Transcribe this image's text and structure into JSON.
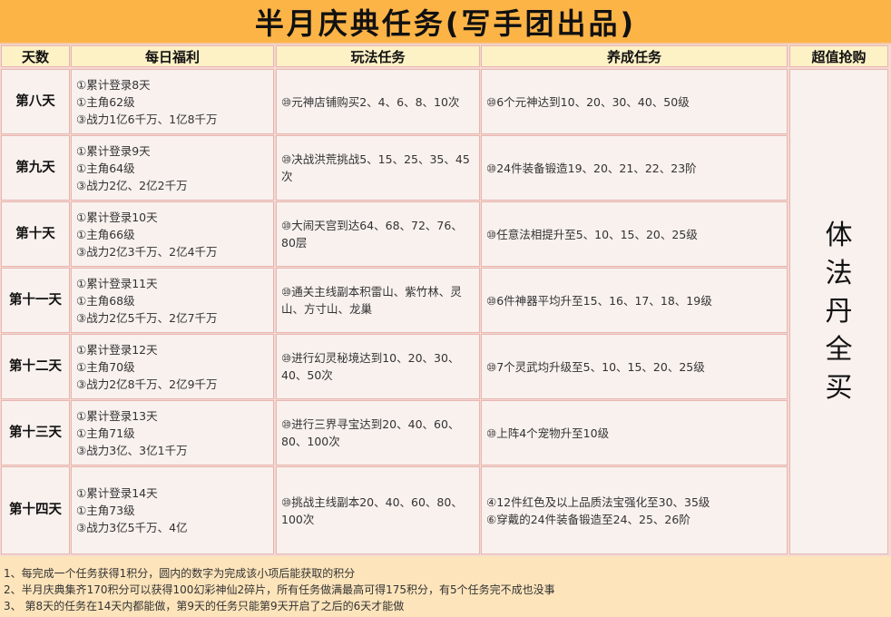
{
  "title": "半月庆典任务(写手团出品)",
  "headers": [
    "天数",
    "每日福利",
    "玩法任务",
    "养成任务",
    "超值抢购"
  ],
  "rows": [
    {
      "day": "第八天",
      "welfare": [
        "①累计登录8天",
        "①主角62级",
        "③战力1亿6千万、1亿8千万"
      ],
      "play": "⑩元神店铺购买2、4、6、8、10次",
      "grow": [
        "⑩6个元神达到10、20、30、40、50级"
      ]
    },
    {
      "day": "第九天",
      "welfare": [
        "①累计登录9天",
        "①主角64级",
        "③战力2亿、2亿2千万"
      ],
      "play": "⑩决战洪荒挑战5、15、25、35、45次",
      "grow": [
        "⑩24件装备锻造19、20、21、22、23阶"
      ]
    },
    {
      "day": "第十天",
      "welfare": [
        "①累计登录10天",
        "①主角66级",
        "③战力2亿3千万、2亿4千万"
      ],
      "play": "⑩大闹天宫到达64、68、72、76、80层",
      "grow": [
        "⑩任意法相提升至5、10、15、20、25级"
      ]
    },
    {
      "day": "第十一天",
      "welfare": [
        "①累计登录11天",
        "①主角68级",
        "③战力2亿5千万、2亿7千万"
      ],
      "play": "⑩通关主线副本积雷山、紫竹林、灵山、方寸山、龙巢",
      "grow": [
        "⑩6件神器平均升至15、16、17、18、19级"
      ]
    },
    {
      "day": "第十二天",
      "welfare": [
        "①累计登录12天",
        "①主角70级",
        "③战力2亿8千万、2亿9千万"
      ],
      "play": "⑩进行幻灵秘境达到10、20、30、40、50次",
      "grow": [
        "⑩7个灵武均升级至5、10、15、20、25级"
      ]
    },
    {
      "day": "第十三天",
      "welfare": [
        "①累计登录13天",
        "①主角71级",
        "③战力3亿、3亿1千万"
      ],
      "play": "⑩进行三界寻宝达到20、40、60、80、100次",
      "grow": [
        "⑩上阵4个宠物升至10级"
      ]
    },
    {
      "day": "第十四天",
      "welfare": [
        "①累计登录14天",
        "①主角73级",
        "③战力3亿5千万、4亿"
      ],
      "play": "⑩挑战主线副本20、40、60、80、100次",
      "grow": [
        "④12件红色及以上品质法宝强化至30、35级",
        "⑥穿戴的24件装备锻造至24、25、26阶"
      ]
    }
  ],
  "special": [
    "体",
    "法",
    "丹",
    "全",
    "买"
  ],
  "notes": [
    "1、每完成一个任务获得1积分，圆内的数字为完成该小项后能获取的积分",
    "2、半月庆典集齐170积分可以获得100幻彩神仙2碎片，所有任务做满最高可得175积分，有5个任务完不成也没事",
    "3、 第8天的任务在14天内都能做，第9天的任务只能第9天开启了之后的6天才能做"
  ]
}
